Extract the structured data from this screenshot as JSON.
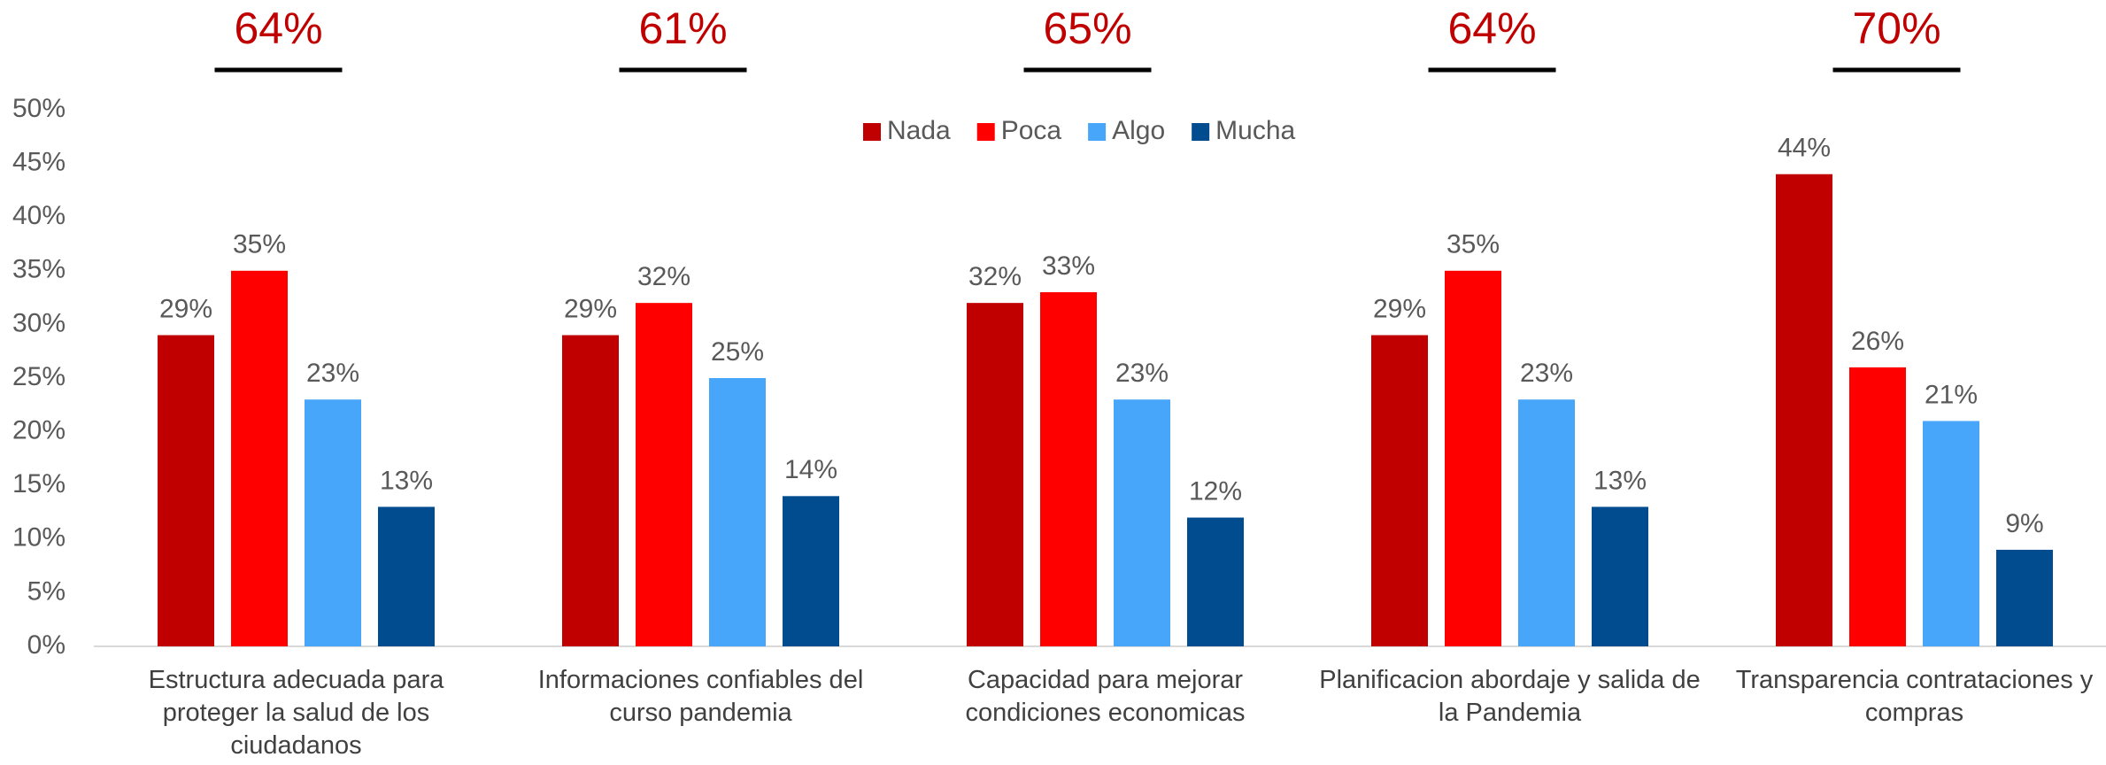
{
  "chart_data": {
    "type": "bar",
    "categories": [
      "Estructura adecuada para proteger la salud de los ciudadanos",
      "Informaciones confiables del curso pandemia",
      "Capacidad para mejorar condiciones economicas",
      "Planificacion  abordaje y salida de la Pandemia",
      "Transparencia contrataciones y compras"
    ],
    "series": [
      {
        "name": "Nada",
        "color": "#c00000",
        "values": [
          29,
          29,
          32,
          29,
          44
        ],
        "value_labels": [
          "29%",
          "29%",
          "32%",
          "29%",
          "44%"
        ]
      },
      {
        "name": "Poca",
        "color": "#ff0000",
        "values": [
          35,
          32,
          33,
          35,
          26
        ],
        "value_labels": [
          "35%",
          "32%",
          "33%",
          "35%",
          "26%"
        ]
      },
      {
        "name": "Algo",
        "color": "#48a6fa",
        "values": [
          23,
          25,
          23,
          23,
          21
        ],
        "value_labels": [
          "23%",
          "25%",
          "23%",
          "23%",
          "21%"
        ]
      },
      {
        "name": "Mucha",
        "color": "#004c8f",
        "values": [
          13,
          14,
          12,
          13,
          9
        ],
        "value_labels": [
          "13%",
          "14%",
          "12%",
          "13%",
          "9%"
        ]
      }
    ],
    "annotations": [
      "64%",
      "61%",
      "65%",
      "64%",
      "70%"
    ],
    "ylim": [
      0,
      50
    ],
    "yticks": [
      {
        "value": 0,
        "label": "0%"
      },
      {
        "value": 5,
        "label": "5%"
      },
      {
        "value": 10,
        "label": "10%"
      },
      {
        "value": 15,
        "label": "15%"
      },
      {
        "value": 20,
        "label": "20%"
      },
      {
        "value": 25,
        "label": "25%"
      },
      {
        "value": 30,
        "label": "30%"
      },
      {
        "value": 35,
        "label": "35%"
      },
      {
        "value": 40,
        "label": "40%"
      },
      {
        "value": 45,
        "label": "45%"
      },
      {
        "value": 50,
        "label": "50%"
      }
    ],
    "legend": "top",
    "grid": false
  }
}
